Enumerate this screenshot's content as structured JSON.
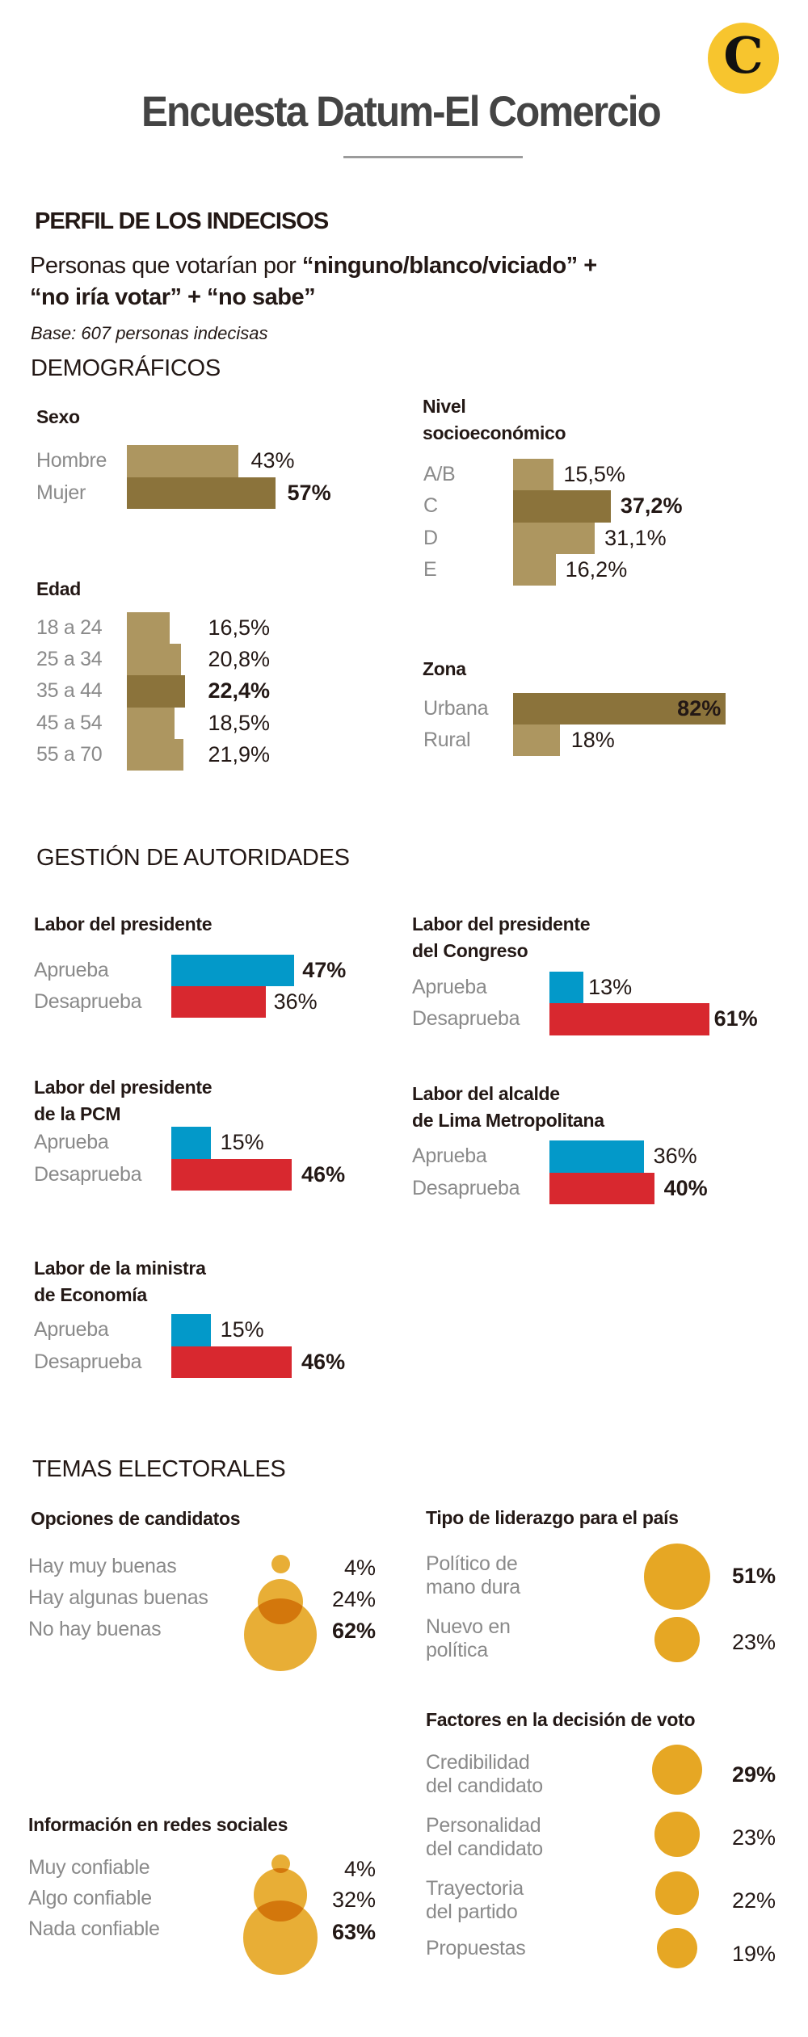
{
  "header": {
    "title": "Encuesta Datum-El Comercio",
    "logo_glyph": "C",
    "logo_color": "#f7c52e"
  },
  "perfil": {
    "heading": "PERFIL DE LOS INDECISOS",
    "subtitle_line1_plain": "Personas que votarían por ",
    "subtitle_line1_bold": "“ninguno/blanco/viciado” +",
    "subtitle_line2_bold": "“no iría votar” + “no sabe”",
    "base": "Base: 607 personas indecisas"
  },
  "colors": {
    "tan_light": "#ad9660",
    "tan_dark": "#8b733b",
    "approve": "#0399c9",
    "disapprove": "#d8282f",
    "bubble": "#e6a724",
    "bubble_overlap": "#cf7a1a"
  },
  "chart_data": [
    {
      "id": "sexo",
      "type": "bar",
      "section": "DEMOGRÁFICOS",
      "title": "Sexo",
      "categories": [
        "Hombre",
        "Mujer"
      ],
      "values": [
        43,
        57
      ],
      "labels": [
        "43%",
        "57%"
      ],
      "highlight": [
        false,
        true
      ],
      "unit": "%"
    },
    {
      "id": "nse",
      "type": "bar",
      "section": "DEMOGRÁFICOS",
      "title": "Nivel socioeconómico",
      "title_lines": [
        "Nivel",
        "socioeconómico"
      ],
      "categories": [
        "A/B",
        "C",
        "D",
        "E"
      ],
      "values": [
        15.5,
        37.2,
        31.1,
        16.2
      ],
      "labels": [
        "15,5%",
        "37,2%",
        "31,1%",
        "16,2%"
      ],
      "highlight": [
        false,
        true,
        false,
        false
      ],
      "unit": "%"
    },
    {
      "id": "edad",
      "type": "bar",
      "section": "DEMOGRÁFICOS",
      "title": "Edad",
      "categories": [
        "18 a 24",
        "25 a 34",
        "35 a 44",
        "45 a 54",
        "55 a 70"
      ],
      "values": [
        16.5,
        20.8,
        22.4,
        18.5,
        21.9
      ],
      "labels": [
        "16,5%",
        "20,8%",
        "22,4%",
        "18,5%",
        "21,9%"
      ],
      "highlight": [
        false,
        false,
        true,
        false,
        false
      ],
      "unit": "%"
    },
    {
      "id": "zona",
      "type": "bar",
      "section": "DEMOGRÁFICOS",
      "title": "Zona",
      "categories": [
        "Urbana",
        "Rural"
      ],
      "values": [
        82,
        18
      ],
      "labels": [
        "82%",
        "18%"
      ],
      "highlight": [
        true,
        false
      ],
      "unit": "%"
    },
    {
      "id": "presidente",
      "type": "bar",
      "section": "GESTIÓN DE AUTORIDADES",
      "title": "Labor del presidente",
      "title_lines": [
        "Labor del presidente"
      ],
      "categories": [
        "Aprueba",
        "Desaprueba"
      ],
      "values": [
        47,
        36
      ],
      "labels": [
        "47%",
        "36%"
      ],
      "highlight": [
        true,
        false
      ]
    },
    {
      "id": "congreso",
      "type": "bar",
      "section": "GESTIÓN DE AUTORIDADES",
      "title": "Labor del presidente del Congreso",
      "title_lines": [
        "Labor del presidente",
        "del Congreso"
      ],
      "categories": [
        "Aprueba",
        "Desaprueba"
      ],
      "values": [
        13,
        61
      ],
      "labels": [
        "13%",
        "61%"
      ],
      "highlight": [
        false,
        true
      ]
    },
    {
      "id": "pcm",
      "type": "bar",
      "section": "GESTIÓN DE AUTORIDADES",
      "title": "Labor del presidente de la PCM",
      "title_lines": [
        "Labor del presidente",
        "de la PCM"
      ],
      "categories": [
        "Aprueba",
        "Desaprueba"
      ],
      "values": [
        15,
        46
      ],
      "labels": [
        "15%",
        "46%"
      ],
      "highlight": [
        false,
        true
      ]
    },
    {
      "id": "alcalde",
      "type": "bar",
      "section": "GESTIÓN DE AUTORIDADES",
      "title": "Labor del alcalde de Lima Metropolitana",
      "title_lines": [
        "Labor del alcalde",
        "de Lima Metropolitana"
      ],
      "categories": [
        "Aprueba",
        "Desaprueba"
      ],
      "values": [
        36,
        40
      ],
      "labels": [
        "36%",
        "40%"
      ],
      "highlight": [
        false,
        true
      ]
    },
    {
      "id": "economia",
      "type": "bar",
      "section": "GESTIÓN DE AUTORIDADES",
      "title": "Labor de la ministra de Economía",
      "title_lines": [
        "Labor de la ministra",
        "de Economía"
      ],
      "categories": [
        "Aprueba",
        "Desaprueba"
      ],
      "values": [
        15,
        46
      ],
      "labels": [
        "15%",
        "46%"
      ],
      "highlight": [
        false,
        true
      ]
    },
    {
      "id": "opciones",
      "type": "bubble",
      "section": "TEMAS ELECTORALES",
      "title": "Opciones de candidatos",
      "categories": [
        "Hay muy buenas",
        "Hay algunas buenas",
        "No hay buenas"
      ],
      "values": [
        4,
        24,
        62
      ],
      "labels": [
        "4%",
        "24%",
        "62%"
      ],
      "highlight": [
        false,
        false,
        true
      ]
    },
    {
      "id": "liderazgo",
      "type": "bubble",
      "section": "TEMAS ELECTORALES",
      "title": "Tipo de liderazgo para el país",
      "categories": [
        "Político de mano dura",
        "Nuevo en política"
      ],
      "category_lines": [
        [
          "Político de",
          "mano dura"
        ],
        [
          "Nuevo en",
          "política"
        ]
      ],
      "values": [
        51,
        23
      ],
      "labels": [
        "51%",
        "23%"
      ],
      "highlight": [
        true,
        false
      ]
    },
    {
      "id": "factores",
      "type": "bubble",
      "section": "TEMAS ELECTORALES",
      "title": "Factores en la decisión de voto",
      "categories": [
        "Credibilidad del candidato",
        "Personalidad del candidato",
        "Trayectoria del partido",
        "Propuestas"
      ],
      "category_lines": [
        [
          "Credibilidad",
          "del candidato"
        ],
        [
          "Personalidad",
          "del candidato"
        ],
        [
          "Trayectoria",
          "del partido"
        ],
        [
          "Propuestas"
        ]
      ],
      "values": [
        29,
        23,
        22,
        19
      ],
      "labels": [
        "29%",
        "23%",
        "22%",
        "19%"
      ],
      "highlight": [
        true,
        false,
        false,
        false
      ]
    },
    {
      "id": "redes",
      "type": "bubble",
      "section": "TEMAS ELECTORALES",
      "title": "Información en redes sociales",
      "categories": [
        "Muy confiable",
        "Algo confiable",
        "Nada confiable"
      ],
      "values": [
        4,
        32,
        63
      ],
      "labels": [
        "4%",
        "32%",
        "63%"
      ],
      "highlight": [
        false,
        false,
        true
      ]
    }
  ],
  "sections": {
    "demograficos": "DEMOGRÁFICOS",
    "gestion": "GESTIÓN DE AUTORIDADES",
    "temas": "TEMAS ELECTORALES"
  }
}
